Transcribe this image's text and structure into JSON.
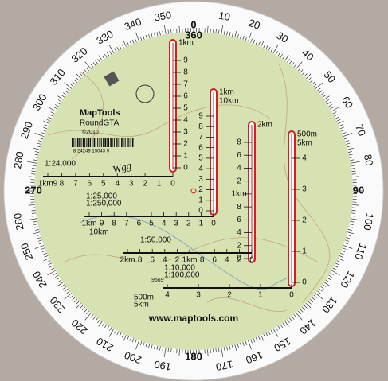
{
  "product": {
    "brand": "MapTools",
    "model": "RoundGTA",
    "copyright": "©2010",
    "barcode": "8 24249 15043 9",
    "url": "www.maptools.com",
    "handwriting": "Wgg",
    "serial": "9669"
  },
  "compass": {
    "cardinal": {
      "north_a": "0",
      "north_b": "360",
      "east": "90",
      "south": "180",
      "west": "270"
    },
    "degrees": [
      "10",
      "20",
      "30",
      "40",
      "50",
      "60",
      "70",
      "80",
      "100",
      "110",
      "120",
      "130",
      "140",
      "150",
      "160",
      "170",
      "190",
      "200",
      "210",
      "220",
      "230",
      "240",
      "250",
      "260",
      "280",
      "290",
      "300",
      "310",
      "320",
      "330",
      "340",
      "350"
    ]
  },
  "rulers": [
    {
      "top": [
        "1km"
      ],
      "labels": [
        "9",
        "8",
        "7",
        "6",
        "5",
        "4",
        "3",
        "2",
        "1",
        "0"
      ]
    },
    {
      "top": [
        "1km",
        "10km"
      ],
      "labels": [
        "9",
        "8",
        "7",
        "6",
        "5",
        "4",
        "3",
        "2",
        "1",
        "0"
      ]
    },
    {
      "top": [
        "2km"
      ],
      "labels": [
        "8",
        "6",
        "4",
        "2",
        "1km",
        "8",
        "6",
        "4",
        "2",
        "0"
      ]
    },
    {
      "top": [
        "500m",
        "5km"
      ],
      "labels": [
        "4",
        "3",
        "2",
        "1",
        "0"
      ]
    }
  ],
  "scales": [
    {
      "names": [
        "1:24,000"
      ],
      "labels": [
        "1km9",
        "8",
        "7",
        "6",
        "5",
        "4",
        "3",
        "2",
        "1",
        "0"
      ],
      "extra": []
    },
    {
      "names": [
        "1:25,000",
        "1:250,000"
      ],
      "labels": [
        "1km",
        "9",
        "8",
        "7",
        "6",
        "5",
        "4",
        "3",
        "2",
        "1",
        "0"
      ],
      "extra": [
        "10km"
      ]
    },
    {
      "names": [
        "1:50,000"
      ],
      "labels": [
        "2km",
        "8",
        "6",
        "4",
        "2",
        "1km",
        "8",
        "6",
        "4",
        "2",
        "0"
      ],
      "extra": []
    },
    {
      "names": [
        "1:10,000",
        "1:100,000"
      ],
      "labels": [
        "4",
        "3",
        "2",
        "1",
        "0"
      ],
      "extra": [
        "500m",
        "5km"
      ]
    }
  ]
}
